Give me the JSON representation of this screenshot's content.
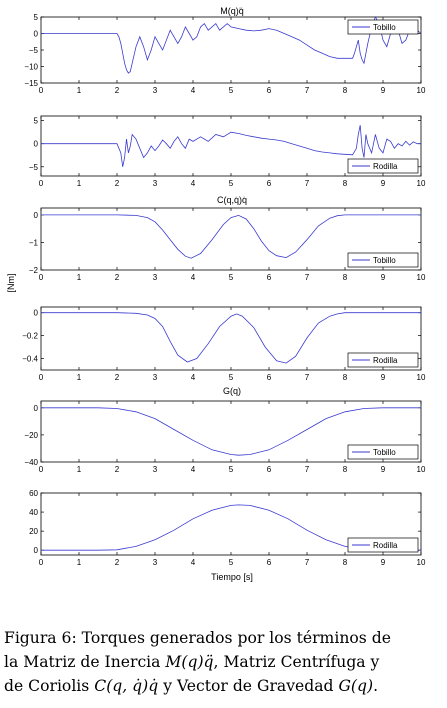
{
  "figure": {
    "group_titles": [
      "M(q)q̈",
      "C(q,q̇)q̇",
      "G(q)"
    ],
    "ylabel": "[Nm]",
    "xlabel": "Tiempo [s]",
    "series_color": "#3a3ad0"
  },
  "caption": {
    "line1": "Figura 6: Torques generados por los términos de",
    "line2_a": "la Matriz de Inercia ",
    "line2_m": "M(q)q̈",
    "line2_b": ", Matriz Centrífuga y",
    "line3_a": "de Coriolis ",
    "line3_c": "C(q, q̇)q̇",
    "line3_b": " y Vector de Gravedad ",
    "line3_g": "G(q)",
    "line3_end": "."
  },
  "chart_data": [
    {
      "type": "line",
      "title": "M(q)q̈",
      "legend": "top-right",
      "xlim": [
        0,
        10
      ],
      "ylim": [
        -15,
        5
      ],
      "xticks": [
        0,
        1,
        2,
        3,
        4,
        5,
        6,
        7,
        8,
        9,
        10
      ],
      "yticks": [
        5,
        0,
        -5,
        -10,
        -15
      ],
      "series": [
        {
          "name": "Tobillo",
          "x": [
            0,
            2,
            2.05,
            2.1,
            2.15,
            2.2,
            2.25,
            2.3,
            2.35,
            2.4,
            2.5,
            2.6,
            2.7,
            2.8,
            2.9,
            3.0,
            3.1,
            3.2,
            3.3,
            3.4,
            3.5,
            3.6,
            3.7,
            3.8,
            3.9,
            4.0,
            4.1,
            4.2,
            4.3,
            4.4,
            4.5,
            4.6,
            4.7,
            4.8,
            4.9,
            5.0,
            5.2,
            5.4,
            5.6,
            5.8,
            6.0,
            6.2,
            6.4,
            6.6,
            6.8,
            7.0,
            7.2,
            7.4,
            7.6,
            7.8,
            8.0,
            8.2,
            8.25,
            8.3,
            8.35,
            8.4,
            8.45,
            8.5,
            8.6,
            8.7,
            8.8,
            8.9,
            9.0,
            9.1,
            9.2,
            9.3,
            9.4,
            9.5,
            9.6,
            9.7,
            9.8,
            9.9,
            10
          ],
          "y": [
            0,
            0,
            -1,
            -3,
            -6,
            -9,
            -11,
            -12,
            -11.5,
            -9,
            -4,
            -1,
            -4,
            -8,
            -5,
            -1,
            -3,
            -5,
            -2,
            1,
            -1,
            -3,
            -1,
            2,
            0,
            -2,
            -1,
            2,
            3,
            1,
            2,
            3,
            1,
            2,
            3,
            2,
            1.5,
            1,
            0.8,
            1,
            1.5,
            1,
            0,
            -1,
            -2,
            -3.5,
            -5,
            -6,
            -7,
            -7.5,
            -7.5,
            -7.5,
            -6,
            -4,
            -2,
            -6,
            -8,
            -9,
            -3,
            2,
            5,
            3,
            -2,
            -4,
            0,
            3,
            1,
            -3,
            -2,
            1,
            2,
            1,
            0
          ]
        }
      ]
    },
    {
      "type": "line",
      "title": "",
      "legend": "bottom-right",
      "xlim": [
        0,
        10
      ],
      "ylim": [
        -7,
        6
      ],
      "xticks": [
        0,
        1,
        2,
        3,
        4,
        5,
        6,
        7,
        8,
        9,
        10
      ],
      "yticks": [
        5,
        0,
        -5
      ],
      "series": [
        {
          "name": "Rodilla",
          "x": [
            0,
            2,
            2.05,
            2.1,
            2.15,
            2.2,
            2.25,
            2.3,
            2.35,
            2.4,
            2.5,
            2.6,
            2.7,
            2.8,
            2.9,
            3.0,
            3.1,
            3.2,
            3.3,
            3.4,
            3.5,
            3.6,
            3.7,
            3.8,
            3.9,
            4.0,
            4.2,
            4.4,
            4.6,
            4.8,
            5.0,
            5.2,
            5.4,
            5.6,
            5.8,
            6.0,
            6.2,
            6.4,
            6.6,
            6.8,
            7.0,
            7.2,
            7.4,
            7.6,
            7.8,
            8.0,
            8.2,
            8.3,
            8.35,
            8.4,
            8.45,
            8.5,
            8.55,
            8.6,
            8.7,
            8.8,
            8.9,
            9.0,
            9.1,
            9.2,
            9.3,
            9.4,
            9.5,
            9.6,
            9.7,
            9.8,
            9.9,
            10
          ],
          "y": [
            0,
            0,
            -1,
            -2,
            -5,
            -3,
            1,
            -2,
            -0.5,
            2,
            1,
            -1,
            -3,
            -2,
            -0.5,
            -1.5,
            -0.5,
            0.8,
            0,
            -1,
            0.5,
            1.5,
            0,
            -1,
            1,
            0.5,
            1.5,
            0.5,
            2,
            1.5,
            2.5,
            2.2,
            1.8,
            1.5,
            1.2,
            1,
            0.8,
            0.5,
            0,
            -0.5,
            -1,
            -1.5,
            -1.8,
            -2,
            -2.2,
            -2.3,
            -2.4,
            -1,
            2,
            4,
            -1,
            -3,
            2,
            0,
            -2,
            2,
            -1,
            -2,
            1,
            0.5,
            -1,
            0,
            -0.5,
            0.5,
            -0.3,
            0.4,
            0,
            0
          ]
        }
      ]
    },
    {
      "type": "line",
      "title": "C(q,q̇)q̇",
      "legend": "bottom-right",
      "xlim": [
        0,
        10
      ],
      "ylim": [
        -2,
        0.25
      ],
      "xticks": [
        0,
        1,
        2,
        3,
        4,
        5,
        6,
        7,
        8,
        9,
        10
      ],
      "yticks": [
        0,
        -1,
        -2
      ],
      "series": [
        {
          "name": "Tobillo",
          "x": [
            0,
            1,
            2,
            2.5,
            2.8,
            3.0,
            3.2,
            3.4,
            3.6,
            3.8,
            3.95,
            4.2,
            4.5,
            4.8,
            5.0,
            5.2,
            5.4,
            5.6,
            5.8,
            6.0,
            6.2,
            6.45,
            6.7,
            7.0,
            7.3,
            7.6,
            7.8,
            8.0,
            8.5,
            9,
            10
          ],
          "y": [
            0,
            0,
            0,
            -0.02,
            -0.1,
            -0.25,
            -0.55,
            -0.9,
            -1.25,
            -1.5,
            -1.57,
            -1.4,
            -0.9,
            -0.35,
            -0.1,
            -0.02,
            -0.15,
            -0.5,
            -0.95,
            -1.3,
            -1.48,
            -1.55,
            -1.35,
            -0.9,
            -0.4,
            -0.12,
            -0.03,
            0,
            0,
            0,
            0
          ]
        }
      ]
    },
    {
      "type": "line",
      "title": "",
      "legend": "bottom-right",
      "xlim": [
        0,
        10
      ],
      "ylim": [
        -0.5,
        0.05
      ],
      "xticks": [
        0,
        1,
        2,
        3,
        4,
        5,
        6,
        7,
        8,
        9,
        10
      ],
      "yticks": [
        0,
        -0.2,
        -0.4
      ],
      "series": [
        {
          "name": "Rodilla",
          "x": [
            0,
            1,
            2,
            2.5,
            2.8,
            3.0,
            3.2,
            3.4,
            3.6,
            3.85,
            4.1,
            4.4,
            4.7,
            5.0,
            5.15,
            5.3,
            5.6,
            5.9,
            6.2,
            6.45,
            6.7,
            7.0,
            7.3,
            7.6,
            7.8,
            8.0,
            8.5,
            9,
            10
          ],
          "y": [
            0,
            0,
            0,
            -0.005,
            -0.02,
            -0.05,
            -0.12,
            -0.25,
            -0.37,
            -0.43,
            -0.4,
            -0.27,
            -0.12,
            -0.03,
            -0.01,
            -0.03,
            -0.13,
            -0.3,
            -0.42,
            -0.44,
            -0.38,
            -0.22,
            -0.09,
            -0.03,
            -0.01,
            0,
            0,
            0,
            0
          ]
        }
      ]
    },
    {
      "type": "line",
      "title": "G(q)",
      "legend": "bottom-right",
      "xlim": [
        0,
        10
      ],
      "ylim": [
        -40,
        5
      ],
      "xticks": [
        0,
        1,
        2,
        3,
        4,
        5,
        6,
        7,
        8,
        9,
        10
      ],
      "yticks": [
        0,
        -20,
        -40
      ],
      "series": [
        {
          "name": "Tobillo",
          "x": [
            0,
            1,
            1.5,
            2,
            2.5,
            3,
            3.5,
            4,
            4.5,
            5,
            5.2,
            5.5,
            6,
            6.5,
            7,
            7.5,
            8,
            8.5,
            9,
            10
          ],
          "y": [
            0,
            0,
            0,
            -0.5,
            -3,
            -8,
            -16,
            -24,
            -31,
            -34.5,
            -35,
            -34.5,
            -31,
            -24,
            -16,
            -8,
            -3,
            -0.5,
            0,
            0
          ]
        }
      ]
    },
    {
      "type": "line",
      "title": "",
      "legend": "bottom-right",
      "xlim": [
        0,
        10
      ],
      "ylim": [
        -5,
        60
      ],
      "xticks": [
        0,
        1,
        2,
        3,
        4,
        5,
        6,
        7,
        8,
        9,
        10
      ],
      "yticks": [
        60,
        40,
        20,
        0
      ],
      "series": [
        {
          "name": "Rodilla",
          "x": [
            0,
            1,
            1.5,
            2,
            2.5,
            3,
            3.5,
            4,
            4.5,
            5,
            5.2,
            5.5,
            6,
            6.5,
            7,
            7.5,
            8,
            8.5,
            9,
            10
          ],
          "y": [
            0,
            0,
            0,
            0.5,
            4,
            11,
            21,
            33,
            42,
            47,
            47.5,
            47,
            42,
            33,
            21,
            11,
            4,
            0.5,
            0,
            0
          ]
        }
      ]
    }
  ]
}
